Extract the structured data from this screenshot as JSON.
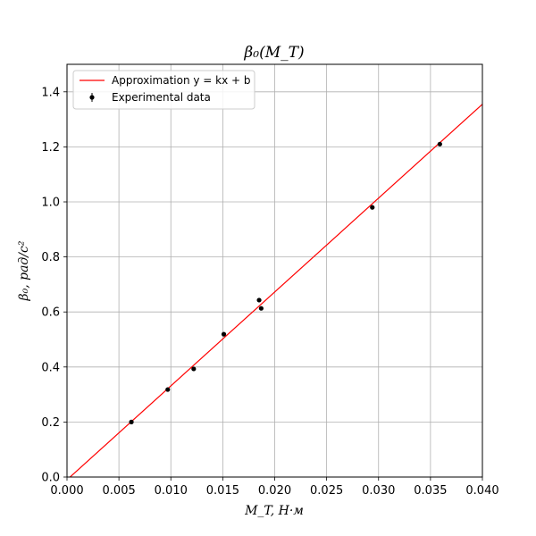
{
  "chart_data": {
    "type": "scatter",
    "title": "β₀(M_T)",
    "xlabel": "M_T, Н·м",
    "ylabel": "β₀, рад/с²",
    "xlim": [
      0.0,
      0.04
    ],
    "ylim": [
      0.0,
      1.5
    ],
    "x_ticks": [
      "0.000",
      "0.005",
      "0.010",
      "0.015",
      "0.020",
      "0.025",
      "0.030",
      "0.035",
      "0.040"
    ],
    "y_ticks": [
      "0.0",
      "0.2",
      "0.4",
      "0.6",
      "0.8",
      "1.0",
      "1.2",
      "1.4"
    ],
    "grid": true,
    "legend_position": "top-left",
    "series": [
      {
        "name": "Approximation y = kx + b",
        "kind": "line",
        "color": "#ff0000",
        "x": [
          0.0,
          0.04
        ],
        "y": [
          -0.01,
          1.355
        ]
      },
      {
        "name": "Experimental data",
        "kind": "points",
        "color": "#000000",
        "x": [
          0.0062,
          0.0097,
          0.0122,
          0.0151,
          0.0185,
          0.0187,
          0.0294,
          0.0359
        ],
        "y": [
          0.2,
          0.318,
          0.393,
          0.519,
          0.643,
          0.613,
          0.98,
          1.21
        ]
      }
    ]
  }
}
